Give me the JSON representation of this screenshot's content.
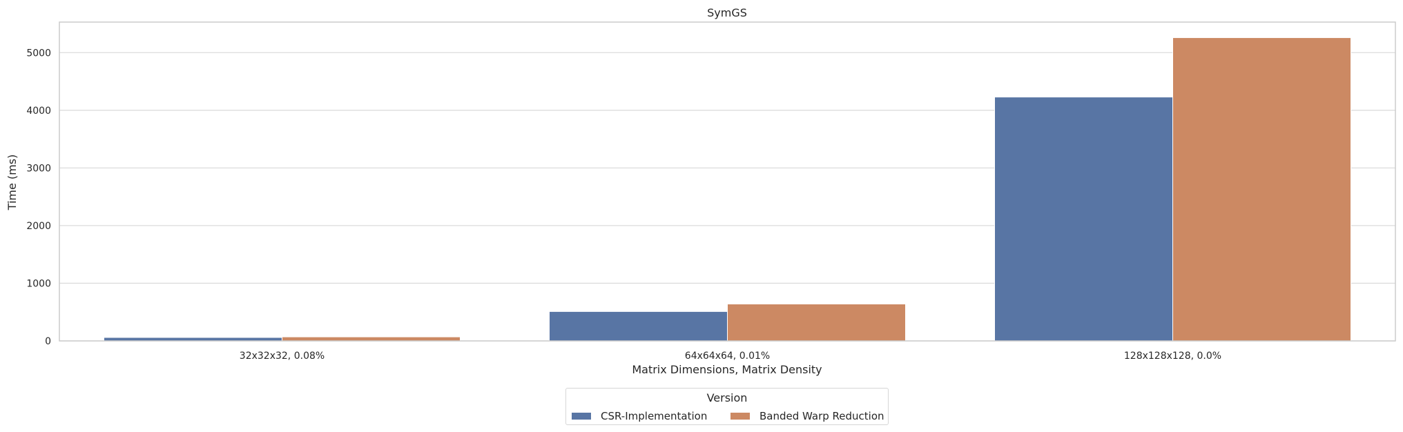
{
  "chart_data": {
    "type": "bar",
    "title": "SymGS",
    "xlabel": "Matrix Dimensions, Matrix Density",
    "ylabel": "Time (ms)",
    "categories": [
      "32x32x32, 0.08%",
      "64x64x64, 0.01%",
      "128x128x128, 0.0%"
    ],
    "series": [
      {
        "name": "CSR-Implementation",
        "color": "#5875a4",
        "values": [
          60,
          510,
          4230
        ]
      },
      {
        "name": "Banded Warp Reduction",
        "color": "#cc8963",
        "values": [
          70,
          640,
          5260
        ]
      }
    ],
    "ylim": [
      0,
      5530
    ],
    "yticks": [
      0,
      1000,
      2000,
      3000,
      4000,
      5000
    ],
    "grid": true,
    "legend": {
      "title": "Version",
      "placement": "bottom-center"
    }
  }
}
